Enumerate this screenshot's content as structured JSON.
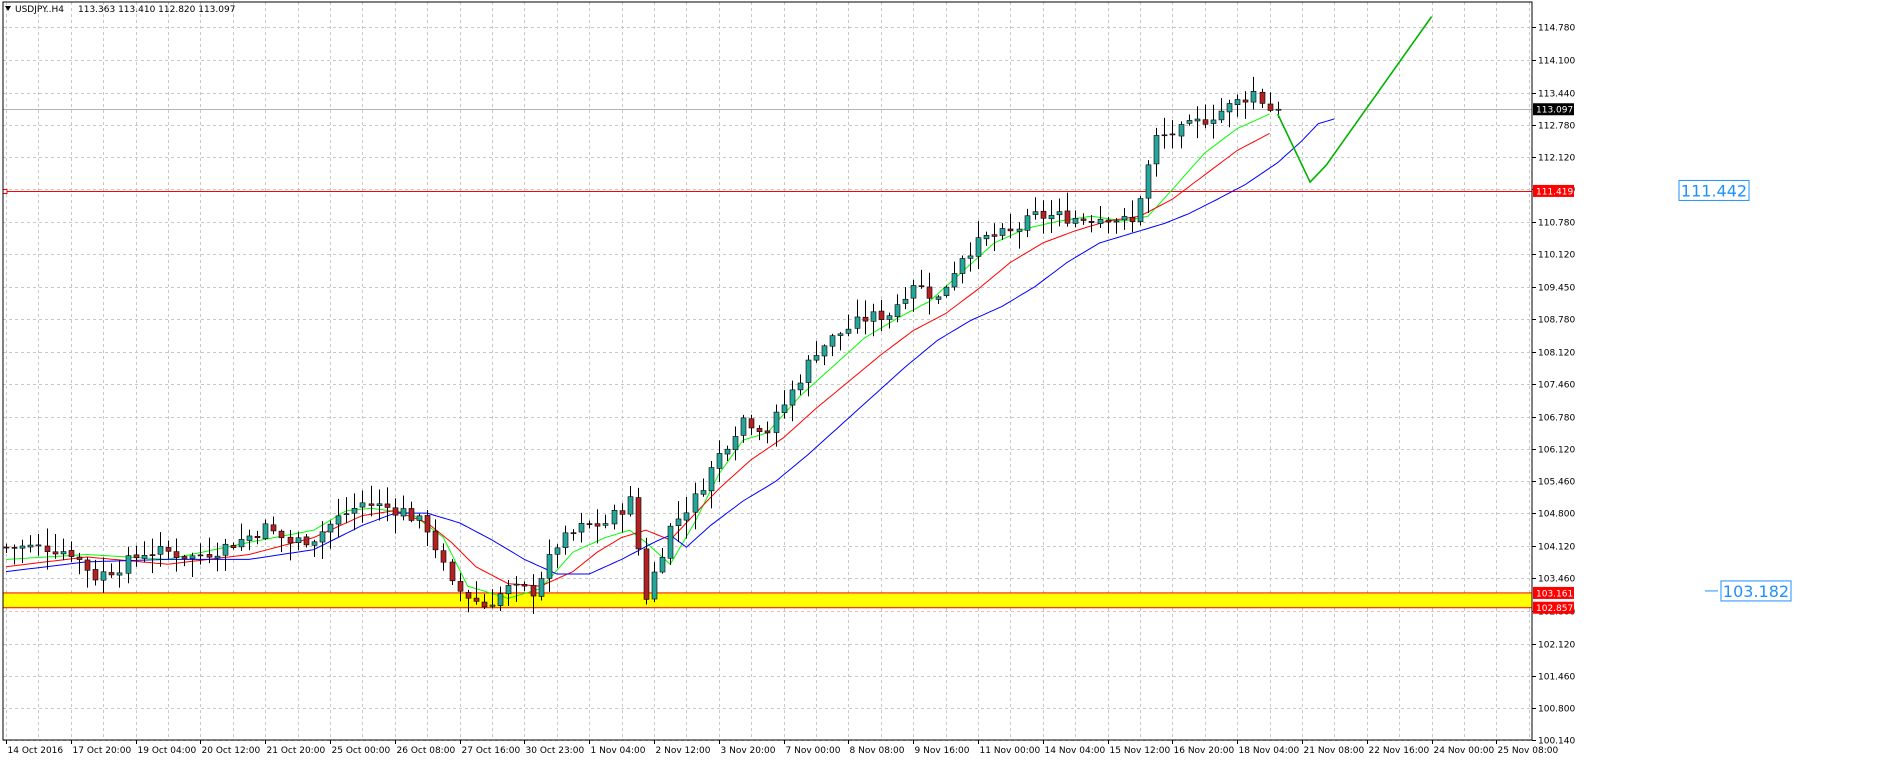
{
  "header": {
    "symbol_label": "USDJPY..H4",
    "ohlc": "113.363 113.410 112.820 113.097",
    "arrow_icon": "triangle-down-icon"
  },
  "colors": {
    "bull_fill": "#26a69a",
    "bear_fill": "#b22222",
    "wick": "#000000",
    "ma_fast": "#00ff00",
    "ma_mid": "#ff0000",
    "ma_slow": "#0000ff",
    "resistance_line": "#ff0000",
    "support_zone": "#ffff00",
    "support_border": "#ff0000",
    "level_text": "#1e90ff",
    "projection": "#00b400",
    "grid": "#c8c8c8"
  },
  "chart_data": {
    "type": "candlestick",
    "symbol": "USDJPY",
    "timeframe": "H4",
    "ylim": [
      100.14,
      115.3
    ],
    "grid": true,
    "y_ticks": [
      "114.780",
      "114.100",
      "113.440",
      "112.780",
      "112.120",
      "111.450",
      "110.780",
      "110.120",
      "109.450",
      "108.780",
      "108.120",
      "107.460",
      "106.780",
      "106.120",
      "105.460",
      "104.800",
      "104.120",
      "103.460",
      "102.800",
      "102.120",
      "101.460",
      "100.800",
      "100.140"
    ],
    "x_ticks": [
      "14 Oct 2016",
      "17 Oct 20:00",
      "19 Oct 04:00",
      "20 Oct 12:00",
      "21 Oct 20:00",
      "25 Oct 00:00",
      "26 Oct 08:00",
      "27 Oct 16:00",
      "30 Oct 23:00",
      "1 Nov 04:00",
      "2 Nov 12:00",
      "3 Nov 20:00",
      "7 Nov 00:00",
      "8 Nov 08:00",
      "9 Nov 16:00",
      "11 Nov 00:00",
      "14 Nov 04:00",
      "15 Nov 12:00",
      "16 Nov 20:00",
      "18 Nov 04:00",
      "21 Nov 08:00",
      "22 Nov 16:00",
      "24 Nov 00:00",
      "25 Nov 08:00"
    ],
    "current_price": 113.097,
    "current_price_label": "113.097",
    "close_path": [
      [
        0,
        104.1
      ],
      [
        6,
        104.1
      ],
      [
        9,
        104.0
      ],
      [
        12,
        103.5
      ],
      [
        15,
        103.7
      ],
      [
        18,
        104.0
      ],
      [
        21,
        104.0
      ],
      [
        24,
        103.9
      ],
      [
        27,
        104.05
      ],
      [
        30,
        104.25
      ],
      [
        33,
        104.5
      ],
      [
        36,
        104.2
      ],
      [
        39,
        104.3
      ],
      [
        42,
        104.7
      ],
      [
        45,
        105.0
      ],
      [
        47,
        104.95
      ],
      [
        50,
        104.85
      ],
      [
        53,
        104.5
      ],
      [
        56,
        103.3
      ],
      [
        60,
        102.9
      ],
      [
        63,
        103.25
      ],
      [
        66,
        103.2
      ],
      [
        69,
        104.15
      ],
      [
        72,
        104.5
      ],
      [
        75,
        104.6
      ],
      [
        78,
        105.05
      ],
      [
        80,
        103.1
      ],
      [
        83,
        104.5
      ],
      [
        86,
        105.1
      ],
      [
        89,
        106.0
      ],
      [
        92,
        106.75
      ],
      [
        95,
        106.5
      ],
      [
        98,
        107.3
      ],
      [
        101,
        108.15
      ],
      [
        104,
        108.5
      ],
      [
        107,
        108.8
      ],
      [
        110,
        108.9
      ],
      [
        113,
        109.55
      ],
      [
        116,
        109.2
      ],
      [
        119,
        110.1
      ],
      [
        122,
        110.45
      ],
      [
        125,
        110.55
      ],
      [
        128,
        110.9
      ],
      [
        131,
        110.9
      ],
      [
        134,
        110.85
      ],
      [
        137,
        110.9
      ],
      [
        140,
        110.75
      ],
      [
        143,
        112.5
      ],
      [
        146,
        112.65
      ],
      [
        149,
        112.9
      ],
      [
        152,
        113.15
      ],
      [
        155,
        113.45
      ],
      [
        157,
        113.1
      ]
    ],
    "moving_averages": [
      {
        "color_key": "ma_fast",
        "points": [
          [
            0,
            103.85
          ],
          [
            10,
            103.95
          ],
          [
            20,
            103.85
          ],
          [
            30,
            104.2
          ],
          [
            38,
            104.45
          ],
          [
            42,
            104.85
          ],
          [
            45,
            104.9
          ],
          [
            50,
            104.8
          ],
          [
            54,
            104.3
          ],
          [
            57,
            103.3
          ],
          [
            62,
            103.05
          ],
          [
            66,
            103.25
          ],
          [
            70,
            104.0
          ],
          [
            74,
            104.3
          ],
          [
            77,
            104.45
          ],
          [
            79,
            104.2
          ],
          [
            82,
            103.75
          ],
          [
            85,
            104.6
          ],
          [
            88,
            105.6
          ],
          [
            91,
            106.3
          ],
          [
            94,
            106.45
          ],
          [
            98,
            107.2
          ],
          [
            102,
            107.8
          ],
          [
            106,
            108.4
          ],
          [
            110,
            108.8
          ],
          [
            114,
            109.15
          ],
          [
            118,
            109.75
          ],
          [
            122,
            110.35
          ],
          [
            126,
            110.65
          ],
          [
            130,
            110.8
          ],
          [
            134,
            110.9
          ],
          [
            138,
            110.8
          ],
          [
            141,
            110.9
          ],
          [
            144,
            111.45
          ],
          [
            148,
            112.2
          ],
          [
            152,
            112.7
          ],
          [
            156,
            113.0
          ]
        ]
      },
      {
        "color_key": "ma_mid",
        "points": [
          [
            0,
            103.7
          ],
          [
            10,
            103.9
          ],
          [
            20,
            103.75
          ],
          [
            30,
            103.95
          ],
          [
            38,
            104.3
          ],
          [
            44,
            104.75
          ],
          [
            48,
            104.85
          ],
          [
            52,
            104.6
          ],
          [
            55,
            104.2
          ],
          [
            58,
            103.7
          ],
          [
            62,
            103.35
          ],
          [
            66,
            103.3
          ],
          [
            70,
            103.6
          ],
          [
            73,
            104.0
          ],
          [
            76,
            104.3
          ],
          [
            79,
            104.45
          ],
          [
            82,
            104.25
          ],
          [
            84,
            104.6
          ],
          [
            88,
            105.3
          ],
          [
            92,
            105.9
          ],
          [
            96,
            106.35
          ],
          [
            100,
            106.95
          ],
          [
            104,
            107.5
          ],
          [
            108,
            108.05
          ],
          [
            112,
            108.55
          ],
          [
            116,
            108.9
          ],
          [
            120,
            109.4
          ],
          [
            124,
            109.95
          ],
          [
            128,
            110.35
          ],
          [
            132,
            110.6
          ],
          [
            136,
            110.8
          ],
          [
            140,
            110.9
          ],
          [
            144,
            111.25
          ],
          [
            148,
            111.75
          ],
          [
            152,
            112.25
          ],
          [
            156,
            112.6
          ]
        ]
      },
      {
        "color_key": "ma_slow",
        "points": [
          [
            0,
            103.6
          ],
          [
            10,
            103.8
          ],
          [
            20,
            103.85
          ],
          [
            30,
            103.85
          ],
          [
            38,
            104.05
          ],
          [
            44,
            104.55
          ],
          [
            48,
            104.8
          ],
          [
            52,
            104.8
          ],
          [
            56,
            104.6
          ],
          [
            60,
            104.25
          ],
          [
            64,
            103.85
          ],
          [
            68,
            103.55
          ],
          [
            72,
            103.55
          ],
          [
            76,
            103.85
          ],
          [
            80,
            104.2
          ],
          [
            82,
            104.35
          ],
          [
            84,
            104.1
          ],
          [
            87,
            104.55
          ],
          [
            91,
            105.05
          ],
          [
            95,
            105.45
          ],
          [
            99,
            106.0
          ],
          [
            103,
            106.6
          ],
          [
            107,
            107.2
          ],
          [
            111,
            107.8
          ],
          [
            115,
            108.35
          ],
          [
            119,
            108.75
          ],
          [
            123,
            109.05
          ],
          [
            127,
            109.45
          ],
          [
            131,
            109.95
          ],
          [
            135,
            110.35
          ],
          [
            139,
            110.55
          ],
          [
            143,
            110.75
          ],
          [
            146,
            110.95
          ],
          [
            149,
            111.2
          ],
          [
            153,
            111.55
          ],
          [
            157,
            112.0
          ],
          [
            160,
            112.45
          ],
          [
            162,
            112.8
          ],
          [
            164,
            112.9
          ]
        ]
      }
    ],
    "support_zone": {
      "low": 102.857,
      "high": 103.161,
      "low_label": "102.857",
      "high_label": "103.161"
    },
    "support_level_label": "103.182",
    "resistance_level": 111.419,
    "resistance_label": "111.419",
    "resistance_text_label": "111.442",
    "projection_lines": [
      {
        "points": [
          [
            157,
            113.0
          ],
          [
            161,
            111.6
          ],
          [
            163,
            111.95
          ],
          [
            176,
            115.0
          ]
        ]
      }
    ]
  }
}
